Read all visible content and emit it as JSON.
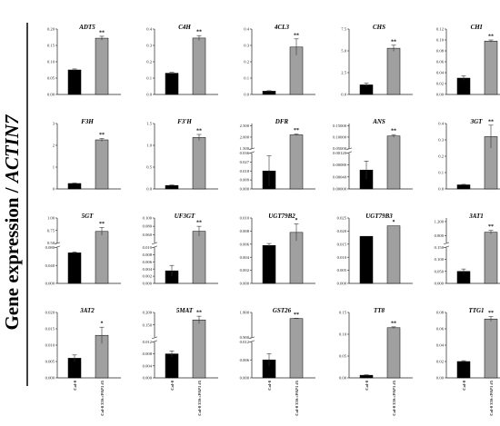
{
  "ylabel": {
    "prefix": "Gene expression / ",
    "gene": "ACTIN7"
  },
  "colors": {
    "col0": "#000000",
    "line": "#999999",
    "axis": "#222222"
  },
  "chart_data": [
    {
      "type": "bar",
      "title": "ADT5",
      "categories": [
        "Col-0",
        "Col-0 35S::PAP1 #5"
      ],
      "values": [
        0.075,
        0.172
      ],
      "errors": [
        0.003,
        0.006
      ],
      "sig": [
        "",
        "**"
      ],
      "ylim": [
        0,
        0.2
      ],
      "yticks": [
        "0.00",
        "0.05",
        "0.10",
        "0.15",
        "0.20"
      ]
    },
    {
      "type": "bar",
      "title": "C4H",
      "categories": [
        "Col-0",
        "Col-0 35S::PAP1 #5"
      ],
      "values": [
        0.13,
        0.345
      ],
      "errors": [
        0.005,
        0.015
      ],
      "sig": [
        "",
        "**"
      ],
      "ylim": [
        0,
        0.4
      ],
      "yticks": [
        "0.0",
        "0.1",
        "0.2",
        "0.3",
        "0.4"
      ]
    },
    {
      "type": "bar",
      "title": "4CL3",
      "categories": [
        "Col-0",
        "Col-0 35S::PAP1 #5"
      ],
      "values": [
        0.02,
        0.29
      ],
      "errors": [
        0.003,
        0.05
      ],
      "sig": [
        "",
        "**"
      ],
      "ylim": [
        0,
        0.4
      ],
      "yticks": [
        "0.0",
        "0.1",
        "0.2",
        "0.3",
        "0.4"
      ]
    },
    {
      "type": "bar",
      "title": "CHS",
      "categories": [
        "Col-0",
        "Col-0 35S::PAP1 #5"
      ],
      "values": [
        1.1,
        5.3
      ],
      "errors": [
        0.2,
        0.35
      ],
      "sig": [
        "",
        "**"
      ],
      "ylim": [
        0,
        7.5
      ],
      "yticks": [
        "0.0",
        "2.5",
        "5.0",
        "7.5"
      ]
    },
    {
      "type": "bar",
      "title": "CHI",
      "categories": [
        "Col-0",
        "Col-0 35S::PAP1 #5"
      ],
      "values": [
        0.03,
        0.098
      ],
      "errors": [
        0.004,
        0.002
      ],
      "sig": [
        "",
        "**"
      ],
      "ylim": [
        0,
        0.12
      ],
      "yticks": [
        "0.00",
        "0.02",
        "0.04",
        "0.06",
        "0.08",
        "0.10",
        "0.12"
      ]
    },
    {
      "type": "bar",
      "title": "F3H",
      "categories": [
        "Col-0",
        "Col-0 35S::PAP1 #5"
      ],
      "values": [
        0.25,
        2.25
      ],
      "errors": [
        0.02,
        0.06
      ],
      "sig": [
        "",
        "**"
      ],
      "ylim": [
        0,
        3
      ],
      "yticks": [
        "0",
        "1",
        "2",
        "3"
      ]
    },
    {
      "type": "bar",
      "title": "F3′H",
      "categories": [
        "Col-0",
        "Col-0 35S::PAP1 #5"
      ],
      "values": [
        0.08,
        1.18
      ],
      "errors": [
        0.01,
        0.07
      ],
      "sig": [
        "",
        "**"
      ],
      "ylim": [
        0,
        1.5
      ],
      "yticks": [
        "0.0",
        "0.5",
        "1.0",
        "1.5"
      ]
    },
    {
      "type": "bar",
      "title": "DFR",
      "categories": [
        "Col-0",
        "Col-0 35S::PAP1 #5"
      ],
      "values": [
        0.018,
        2.1
      ],
      "errors": [
        0.015,
        0.03
      ],
      "sig": [
        "",
        "**"
      ],
      "ylim": [
        0,
        2.6
      ],
      "break": [
        0.036,
        1.5
      ],
      "yticks": [
        "0.000",
        "0.009",
        "0.018",
        "0.027",
        "0.036",
        "1.500",
        "2.000",
        "2.500"
      ]
    },
    {
      "type": "bar",
      "title": "ANS",
      "categories": [
        "Col-0",
        "Col-0 35S::PAP1 #5"
      ],
      "values": [
        0.00063,
        0.105
      ],
      "errors": [
        0.0003,
        0.006
      ],
      "sig": [
        "",
        "**"
      ],
      "ylim": [
        0,
        0.16
      ],
      "break": [
        0.0012,
        0.05
      ],
      "yticks": [
        "0.00000",
        "0.00040",
        "0.00080",
        "0.00120",
        "0.05000",
        "0.10000",
        "0.15000"
      ]
    },
    {
      "type": "bar",
      "title": "3GT",
      "categories": [
        "Col-0",
        "Col-0 35S::PAP1 #5"
      ],
      "values": [
        0.025,
        0.32
      ],
      "errors": [
        0.003,
        0.07
      ],
      "sig": [
        "",
        "**"
      ],
      "ylim": [
        0,
        0.4
      ],
      "yticks": [
        "0.0",
        "0.1",
        "0.2",
        "0.3",
        "0.4"
      ]
    },
    {
      "type": "bar",
      "title": "5GT",
      "categories": [
        "Col-0",
        "Col-0 35S::PAP1 #5"
      ],
      "values": [
        0.068,
        0.73
      ],
      "errors": [
        0.002,
        0.08
      ],
      "sig": [
        "",
        "**"
      ],
      "ylim": [
        0,
        1.0
      ],
      "break": [
        0.08,
        0.5
      ],
      "yticks": [
        "0.000",
        "0.040",
        "0.080",
        "0.50",
        "0.75",
        "1.00"
      ]
    },
    {
      "type": "bar",
      "title": "UF3GT",
      "categories": [
        "Col-0",
        "Col-0 35S::PAP1 #5"
      ],
      "values": [
        0.0035,
        0.068
      ],
      "errors": [
        0.0015,
        0.012
      ],
      "sig": [
        "",
        "**"
      ],
      "ylim": [
        0,
        0.1
      ],
      "break": [
        0.01,
        0.04
      ],
      "yticks": [
        "0.000",
        "0.002",
        "0.004",
        "0.006",
        "0.008",
        "0.010",
        "0.060",
        "0.080",
        "0.100"
      ]
    },
    {
      "type": "bar",
      "title": "UGT79B2",
      "categories": [
        "Col-0",
        "Col-0 35S::PAP1 #5"
      ],
      "values": [
        0.0058,
        0.0078
      ],
      "errors": [
        0.0003,
        0.0013
      ],
      "sig": [
        "",
        "*"
      ],
      "ylim": [
        0,
        0.01
      ],
      "yticks": [
        "0.000",
        "0.002",
        "0.004",
        "0.006",
        "0.008",
        "0.010"
      ]
    },
    {
      "type": "bar",
      "title": "UGT79B3",
      "categories": [
        "Col-0",
        "Col-0 35S::PAP1 #5"
      ],
      "values": [
        0.018,
        0.022
      ],
      "errors": [
        0,
        0
      ],
      "sig": [
        "",
        "*"
      ],
      "ylim": [
        0,
        0.025
      ],
      "yticks": [
        "0.000",
        "0.005",
        "0.010",
        "0.015",
        "0.020",
        "0.025"
      ]
    },
    {
      "type": "bar",
      "title": "3AT1",
      "categories": [
        "Col-0",
        "Col-0 35S::PAP1 #5"
      ],
      "values": [
        0.05,
        0.9
      ],
      "errors": [
        0.01,
        0.05
      ],
      "sig": [
        "",
        "**"
      ],
      "ylim": [
        0,
        1.3
      ],
      "break": [
        0.15,
        0.6
      ],
      "yticks": [
        "0.000",
        "0.050",
        "0.100",
        "0.150",
        "0.800",
        "1.200"
      ]
    },
    {
      "type": "bar",
      "title": "3AT2",
      "categories": [
        "Col-0",
        "Col-0 35S::PAP1 #5"
      ],
      "values": [
        0.006,
        0.013
      ],
      "errors": [
        0.001,
        0.0025
      ],
      "sig": [
        "",
        "*"
      ],
      "ylim": [
        0,
        0.02
      ],
      "yticks": [
        "0.000",
        "0.005",
        "0.010",
        "0.015",
        "0.020"
      ]
    },
    {
      "type": "bar",
      "title": "5MAT",
      "categories": [
        "Col-0",
        "Col-0 35S::PAP1 #5"
      ],
      "values": [
        0.008,
        0.17
      ],
      "errors": [
        0.001,
        0.015
      ],
      "sig": [
        "",
        "**"
      ],
      "ylim": [
        0,
        0.2
      ],
      "break": [
        0.012,
        0.1
      ],
      "yticks": [
        "0.000",
        "0.004",
        "0.008",
        "0.012",
        "0.150",
        "0.200"
      ]
    },
    {
      "type": "bar",
      "title": "GST26",
      "categories": [
        "Col-0",
        "Col-0 35S::PAP1 #5"
      ],
      "values": [
        0.006,
        1.58
      ],
      "errors": [
        0.002,
        0.01
      ],
      "sig": [
        "",
        "**"
      ],
      "ylim": [
        0,
        1.8
      ],
      "break": [
        0.012,
        0.9
      ],
      "yticks": [
        "0.000",
        "0.006",
        "0.012",
        "0.900",
        "1.800"
      ]
    },
    {
      "type": "bar",
      "title": "TT8",
      "categories": [
        "Col-0",
        "Col-0 35S::PAP1 #5"
      ],
      "values": [
        0.006,
        0.115
      ],
      "errors": [
        0.001,
        0.002
      ],
      "sig": [
        "",
        "**"
      ],
      "ylim": [
        0,
        0.15
      ],
      "yticks": [
        "0.00",
        "0.05",
        "0.10",
        "0.15"
      ]
    },
    {
      "type": "bar",
      "title": "TTG1",
      "categories": [
        "Col-0",
        "Col-0 35S::PAP1 #5"
      ],
      "values": [
        0.02,
        0.072
      ],
      "errors": [
        0.001,
        0.003
      ],
      "sig": [
        "",
        "**"
      ],
      "ylim": [
        0,
        0.08
      ],
      "yticks": [
        "0.00",
        "0.02",
        "0.04",
        "0.06",
        "0.08"
      ]
    }
  ]
}
